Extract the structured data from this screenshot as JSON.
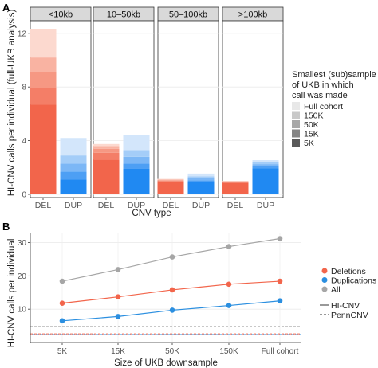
{
  "chart_data": [
    {
      "panel_label": "A",
      "type": "bar",
      "stacked": true,
      "xlabel": "CNV type",
      "ylabel": "HI-CNV calls per individual (full-UKB analysis)",
      "ylim": [
        0,
        12.7
      ],
      "y_ticks": [
        0,
        4,
        8,
        12
      ],
      "facets": [
        "<10kb",
        "10–50kb",
        "50–100kb",
        ">100kb"
      ],
      "categories": [
        "DEL",
        "DUP"
      ],
      "legend": {
        "title_lines": [
          "Smallest (sub)sample",
          "of UKB in which",
          "call was made"
        ],
        "entries": [
          "Full cohort",
          "150K",
          "50K",
          "15K",
          "5K"
        ],
        "placement": "right"
      },
      "levels": [
        "5K",
        "15K",
        "50K",
        "150K",
        "Full cohort"
      ],
      "series": [
        {
          "facet": "<10kb",
          "category": "DEL",
          "cumulative": [
            6.7,
            7.9,
            9.1,
            10.2,
            12.3
          ]
        },
        {
          "facet": "<10kb",
          "category": "DUP",
          "cumulative": [
            1.1,
            1.7,
            2.3,
            2.9,
            4.2
          ]
        },
        {
          "facet": "10–50kb",
          "category": "DEL",
          "cumulative": [
            2.6,
            3.1,
            3.4,
            3.6,
            3.75
          ]
        },
        {
          "facet": "10–50kb",
          "category": "DUP",
          "cumulative": [
            1.9,
            2.3,
            2.8,
            3.3,
            4.4
          ]
        },
        {
          "facet": "50–100kb",
          "category": "DEL",
          "cumulative": [
            0.9,
            1.0,
            1.05,
            1.1,
            1.15
          ]
        },
        {
          "facet": "50–100kb",
          "category": "DUP",
          "cumulative": [
            0.9,
            1.05,
            1.2,
            1.35,
            1.55
          ]
        },
        {
          "facet": ">100kb",
          "category": "DEL",
          "cumulative": [
            0.85,
            0.9,
            0.95,
            0.98,
            1.0
          ]
        },
        {
          "facet": ">100kb",
          "category": "DUP",
          "cumulative": [
            1.95,
            2.1,
            2.25,
            2.4,
            2.55
          ]
        }
      ],
      "colors": {
        "DEL": [
          "#f2654b",
          "#f47e67",
          "#f69883",
          "#f9b3a2",
          "#fcd9cf"
        ],
        "DUP": [
          "#2089f2",
          "#4d9ff4",
          "#7cb7f6",
          "#a4cdf8",
          "#d3e6fb"
        ],
        "legend_swatches": [
          "#e8e8e8",
          "#c9c9c9",
          "#a8a8a8",
          "#858585",
          "#5a5a5a"
        ]
      },
      "grid": true
    },
    {
      "panel_label": "B",
      "type": "line",
      "xlabel": "Size of UKB downsample",
      "ylabel": "HI-CNV calls per individual",
      "x": [
        "5K",
        "15K",
        "50K",
        "150K",
        "Full cohort"
      ],
      "ylim": [
        0,
        33
      ],
      "y_ticks": [
        10,
        20,
        30
      ],
      "series": [
        {
          "name": "Deletions",
          "color": "#f2654b",
          "values": [
            11.8,
            13.7,
            15.8,
            17.5,
            18.4
          ]
        },
        {
          "name": "Duplications",
          "color": "#2b8fe0",
          "values": [
            6.5,
            7.8,
            9.7,
            11.1,
            12.5
          ]
        },
        {
          "name": "All",
          "color": "#a6a6a6",
          "values": [
            18.4,
            21.9,
            25.7,
            28.8,
            31.2
          ]
        }
      ],
      "reference_lines": {
        "PennCNV": {
          "All": 4.8,
          "Deletions": 2.6,
          "Duplications": 2.4
        }
      },
      "line_legend": [
        "HI-CNV",
        "PennCNV"
      ],
      "legend_placement": "right",
      "grid": true
    }
  ]
}
